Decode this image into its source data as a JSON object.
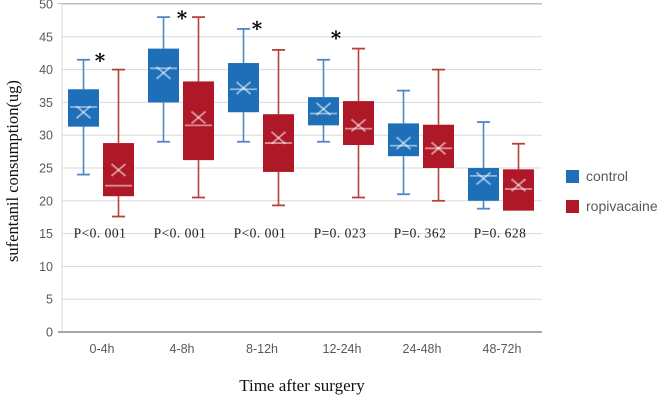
{
  "chart_data": {
    "type": "boxplot",
    "title": "",
    "xlabel": "Time after surgery",
    "ylabel": "sufentanil consumption(ug)",
    "categories": [
      "0-4h",
      "4-8h",
      "8-12h",
      "12-24h",
      "24-48h",
      "48-72h"
    ],
    "ylim": [
      0,
      50
    ],
    "ytick_step": 5,
    "grid": true,
    "legend_position": "right",
    "series": [
      {
        "name": "control",
        "color": "#1F6FB8",
        "whisker_color": "#4F87C5",
        "boxes": [
          {
            "low": 24,
            "q1": 31.3,
            "median": 34.3,
            "q3": 37,
            "high": 41.5,
            "mean": 33.5
          },
          {
            "low": 29,
            "q1": 35,
            "median": 40.2,
            "q3": 43.2,
            "high": 48,
            "mean": 39.5
          },
          {
            "low": 29,
            "q1": 33.5,
            "median": 37,
            "q3": 41,
            "high": 46.2,
            "mean": 37.2
          },
          {
            "low": 29,
            "q1": 31.5,
            "median": 33.3,
            "q3": 35.8,
            "high": 41.5,
            "mean": 34
          },
          {
            "low": 21,
            "q1": 26.8,
            "median": 28.4,
            "q3": 31.8,
            "high": 36.8,
            "mean": 28.8
          },
          {
            "low": 18.8,
            "q1": 20,
            "median": 23.8,
            "q3": 25,
            "high": 32,
            "mean": 23.4
          }
        ]
      },
      {
        "name": "ropivacaine",
        "color": "#AE1827",
        "whisker_color": "#B7423B",
        "boxes": [
          {
            "low": 17.6,
            "q1": 20.7,
            "median": 22.3,
            "q3": 28.8,
            "high": 40,
            "mean": 24.7
          },
          {
            "low": 20.5,
            "q1": 26.2,
            "median": 31.5,
            "q3": 38.2,
            "high": 48,
            "mean": 32.7
          },
          {
            "low": 19.3,
            "q1": 24.4,
            "median": 28.8,
            "q3": 33.2,
            "high": 43,
            "mean": 29.6
          },
          {
            "low": 20.5,
            "q1": 28.5,
            "median": 31,
            "q3": 35.2,
            "high": 43.2,
            "mean": 31.5
          },
          {
            "low": 20,
            "q1": 25,
            "median": 28,
            "q3": 31.6,
            "high": 40,
            "mean": 28
          },
          {
            "low": 18.5,
            "q1": 18.5,
            "median": 21.8,
            "q3": 24.8,
            "high": 28.7,
            "mean": 22.4
          }
        ]
      }
    ],
    "p_values": [
      "P<0. 001",
      "P<0. 001",
      "P<0. 001",
      "P=0. 023",
      "P=0. 362",
      "P=0. 628"
    ],
    "p_value_y": 15.2,
    "significance": [
      {
        "category_index": 0,
        "text": "*",
        "y": 41.4,
        "dx": -2
      },
      {
        "category_index": 1,
        "text": "*",
        "y": 47.9,
        "dx": 0
      },
      {
        "category_index": 2,
        "text": "*",
        "y": 46.3,
        "dx": -5
      },
      {
        "category_index": 3,
        "text": "*",
        "y": 44.8,
        "dx": -6
      }
    ],
    "colors": {
      "gridline": "#d9d9d9",
      "top_gridline": "#bdbdbd",
      "axis_line": "#a6a6a6",
      "left_axis_line": "#d9d9d9",
      "tick_text": "#595959",
      "mark_overlay": "rgba(255,255,255,0.5)"
    }
  },
  "legend": {
    "items": [
      {
        "label": "control",
        "color": "#1F6FB8"
      },
      {
        "label": "ropivacaine",
        "color": "#AE1827"
      }
    ]
  }
}
